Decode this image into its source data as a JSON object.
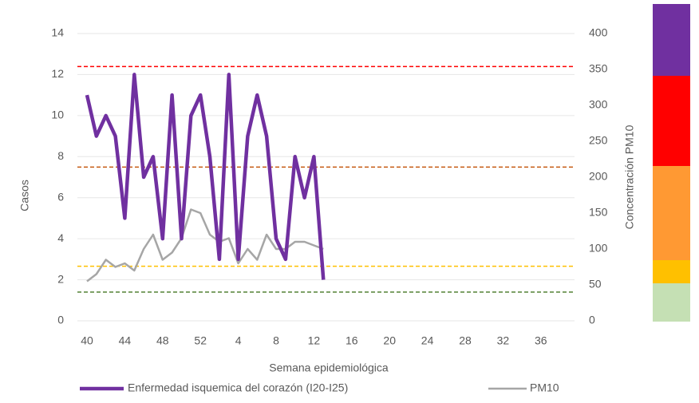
{
  "chart_data": {
    "type": "line",
    "x_label": "Semana epidemiológica",
    "y_label": "Casos",
    "y2_label": "Concentración PM10",
    "categories": [
      40,
      null,
      null,
      null,
      44,
      null,
      null,
      null,
      48,
      null,
      null,
      null,
      52,
      null,
      null,
      null,
      4,
      null,
      null,
      null,
      8,
      null,
      null,
      null,
      12,
      null,
      null,
      null,
      16,
      null,
      null,
      null,
      20,
      null,
      null,
      null,
      24,
      null,
      null,
      null,
      28,
      null,
      null,
      null,
      32,
      null,
      null,
      null,
      36,
      null,
      null,
      null
    ],
    "series": [
      {
        "name": "Enfermedad isquemica del corazón (I20-I25)",
        "color": "#7030a0",
        "axis": "y",
        "values": [
          11,
          9,
          10,
          9,
          5,
          12,
          7,
          8,
          4,
          11,
          4,
          10,
          11,
          8,
          3,
          12,
          3,
          9,
          11,
          9,
          4,
          3,
          8,
          6,
          8,
          2,
          null,
          null,
          null,
          null,
          null,
          null,
          null,
          null,
          null,
          null,
          null,
          null,
          null,
          null,
          null,
          null,
          null,
          null,
          null,
          null,
          null,
          null,
          null,
          null,
          null,
          null
        ]
      },
      {
        "name": "PM10",
        "color": "#a6a6a6",
        "axis": "y2",
        "values": [
          55,
          65,
          85,
          75,
          80,
          70,
          100,
          120,
          85,
          95,
          115,
          155,
          150,
          120,
          110,
          115,
          80,
          100,
          85,
          120,
          100,
          100,
          110,
          110,
          105,
          100,
          null,
          null,
          null,
          null,
          null,
          null,
          null,
          null,
          null,
          null,
          null,
          null,
          null,
          null,
          null,
          null,
          null,
          null,
          null,
          null,
          null,
          null,
          null,
          null,
          null,
          null
        ]
      }
    ],
    "reference_lines": [
      {
        "value": 354,
        "color": "#ff0000",
        "axis": "y2"
      },
      {
        "value": 214,
        "color": "#c55a11",
        "axis": "y2"
      },
      {
        "value": 76,
        "color": "#ffc000",
        "axis": "y2"
      },
      {
        "value": 40,
        "color": "#548235",
        "axis": "y2"
      }
    ],
    "ylim": [
      0,
      14
    ],
    "yticks": [
      0,
      2,
      4,
      6,
      8,
      10,
      12,
      14
    ],
    "y2lim": [
      0,
      400
    ],
    "y2ticks": [
      0,
      50,
      100,
      150,
      200,
      250,
      300,
      350,
      400
    ],
    "grid": true
  }
}
